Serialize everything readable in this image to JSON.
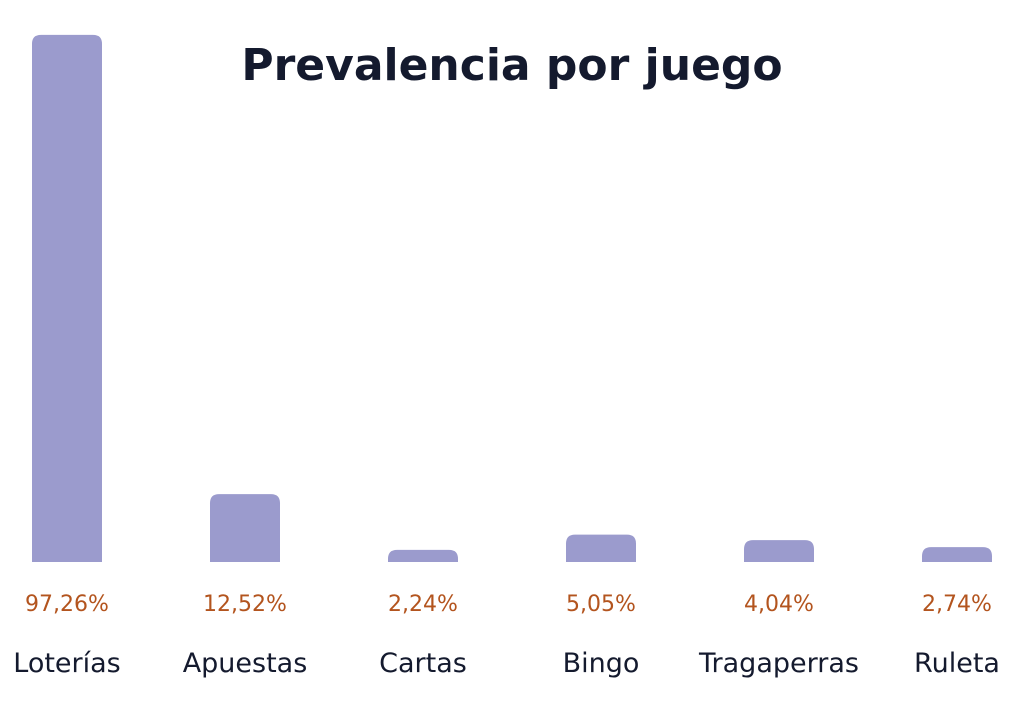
{
  "colors": {
    "bar": "#9b9bcd",
    "value_label": "#b3541e",
    "title": "#141a2e",
    "category_label": "#141a2e"
  },
  "chart_data": {
    "type": "bar",
    "title": "Prevalencia por juego",
    "xlabel": "",
    "ylabel": "",
    "unit": "%",
    "ylim": [
      0,
      100
    ],
    "grid": false,
    "legend": "none",
    "categories": [
      "Loterías",
      "Apuestas",
      "Cartas",
      "Bingo",
      "Tragaperras",
      "Ruleta"
    ],
    "values": [
      97.26,
      12.52,
      2.24,
      5.05,
      4.04,
      2.74
    ],
    "value_labels": [
      "97,26%",
      "12,52%",
      "2,24%",
      "5,05%",
      "4,04%",
      "2,74%"
    ]
  }
}
